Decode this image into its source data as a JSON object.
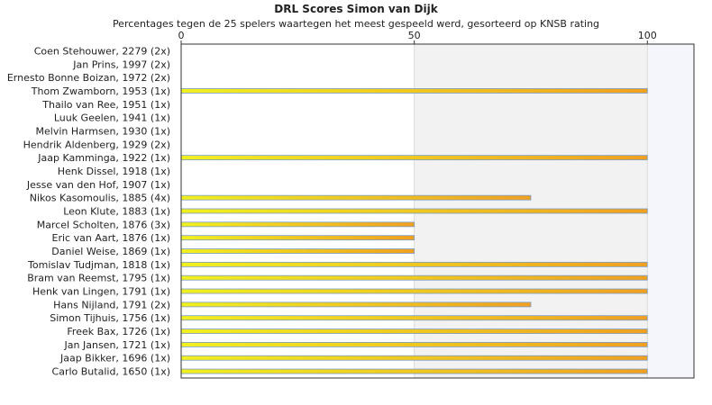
{
  "chart_data": {
    "type": "bar",
    "orientation": "horizontal",
    "title": "DRL Scores Simon van Dijk",
    "subtitle": "Percentages tegen de 25 spelers waartegen het meest gespeeld werd, gesorteerd op KNSB rating",
    "xlim": [
      0,
      110
    ],
    "xticks": [
      0,
      50,
      100
    ],
    "grid": true,
    "categories": [
      "Coen Stehouwer, 2279 (2x)",
      "Jan Prins, 1997 (2x)",
      "Ernesto Bonne Boizan, 1972 (2x)",
      "Thom Zwamborn, 1953 (1x)",
      "Thailo van Ree, 1951 (1x)",
      "Luuk Geelen, 1941 (1x)",
      "Melvin Harmsen, 1930 (1x)",
      "Hendrik Aldenberg, 1929 (2x)",
      "Jaap Kamminga, 1922 (1x)",
      "Henk Dissel, 1918 (1x)",
      "Jesse van den Hof, 1907 (1x)",
      "Nikos Kasomoulis, 1885 (4x)",
      "Leon Klute, 1883 (1x)",
      "Marcel Scholten, 1876 (3x)",
      "Eric van Aart, 1876 (1x)",
      "Daniel Weise, 1869 (1x)",
      "Tomislav Tudjman, 1818 (1x)",
      "Bram van Reemst, 1795 (1x)",
      "Henk van Lingen, 1791 (1x)",
      "Hans Nijland, 1791 (2x)",
      "Simon Tijhuis, 1756 (1x)",
      "Freek Bax, 1726 (1x)",
      "Jan Jansen, 1721 (1x)",
      "Jaap Bikker, 1696 (1x)",
      "Carlo Butalid, 1650 (1x)"
    ],
    "values": [
      0,
      0,
      0,
      100,
      0,
      0,
      0,
      0,
      100,
      0,
      0,
      75,
      100,
      50,
      50,
      50,
      100,
      100,
      100,
      75,
      100,
      100,
      100,
      100,
      100
    ],
    "colors": {
      "bar_start": "#f0f020",
      "bar_end": "#f0a020",
      "bar_border": "#7a9cc6",
      "band_light": "#ffffff",
      "band_mid": "#f2f2f2",
      "band_right": "#f5f6fb",
      "axis": "#333333"
    }
  }
}
